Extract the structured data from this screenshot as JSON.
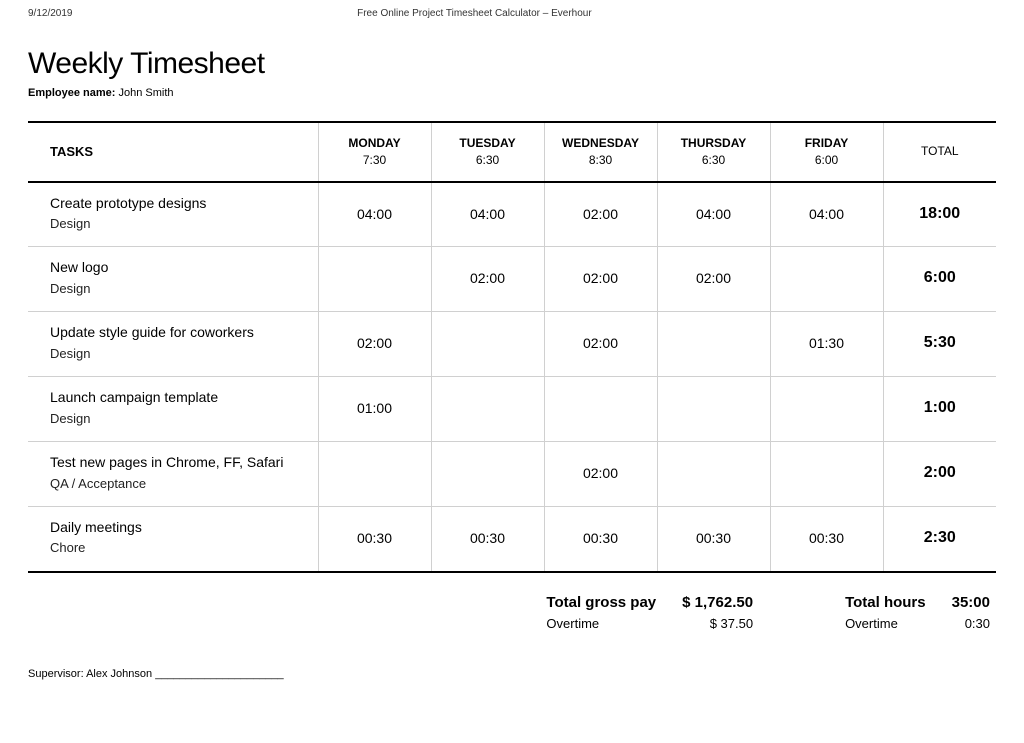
{
  "docHeader": {
    "date": "9/12/2019",
    "title": "Free Online Project Timesheet Calculator – Everhour"
  },
  "pageTitle": "Weekly Timesheet",
  "employee": {
    "label": "Employee name:",
    "name": "John Smith"
  },
  "table": {
    "tasksHeader": "TASKS",
    "totalHeader": "TOTAL",
    "days": [
      {
        "name": "MONDAY",
        "time": "7:30"
      },
      {
        "name": "TUESDAY",
        "time": "6:30"
      },
      {
        "name": "WEDNESDAY",
        "time": "8:30"
      },
      {
        "name": "THURSDAY",
        "time": "6:30"
      },
      {
        "name": "FRIDAY",
        "time": "6:00"
      }
    ],
    "rows": [
      {
        "task": "Create prototype designs",
        "category": "Design",
        "cells": [
          "04:00",
          "04:00",
          "02:00",
          "04:00",
          "04:00"
        ],
        "total": "18:00"
      },
      {
        "task": "New logo",
        "category": "Design",
        "cells": [
          "",
          "02:00",
          "02:00",
          "02:00",
          ""
        ],
        "total": "6:00"
      },
      {
        "task": "Update style guide for coworkers",
        "category": "Design",
        "cells": [
          "02:00",
          "",
          "02:00",
          "",
          "01:30"
        ],
        "total": "5:30"
      },
      {
        "task": "Launch campaign template",
        "category": "Design",
        "cells": [
          "01:00",
          "",
          "",
          "",
          ""
        ],
        "total": "1:00"
      },
      {
        "task": "Test new pages in Chrome, FF, Safari",
        "category": "QA / Acceptance",
        "cells": [
          "",
          "",
          "02:00",
          "",
          ""
        ],
        "total": "2:00"
      },
      {
        "task": "Daily meetings",
        "category": "Chore",
        "cells": [
          "00:30",
          "00:30",
          "00:30",
          "00:30",
          "00:30"
        ],
        "total": "2:30"
      }
    ]
  },
  "summary": {
    "grossLabel": "Total gross pay",
    "grossValue": "$ 1,762.50",
    "overtimePayLabel": "Overtime",
    "overtimePayValue": "$ 37.50",
    "hoursLabel": "Total hours",
    "hoursValue": "35:00",
    "overtimeHoursLabel": "Overtime",
    "overtimeHoursValue": "0:30"
  },
  "supervisor": {
    "label": "Supervisor:",
    "name": "Alex Johnson",
    "line": "_____________________"
  }
}
